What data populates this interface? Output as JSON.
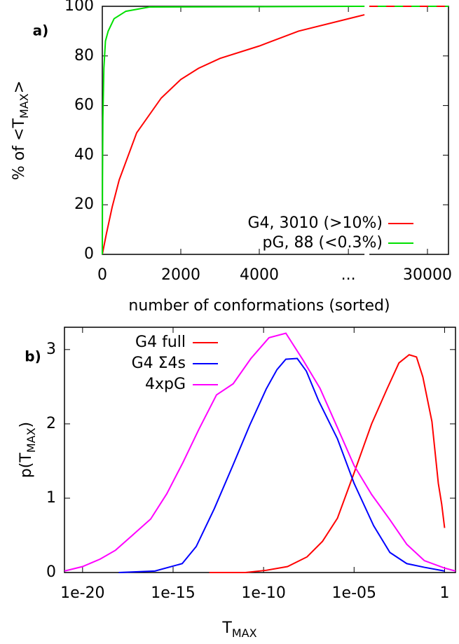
{
  "chart_data": [
    {
      "type": "line",
      "panel_label": "a)",
      "ylabel": [
        "% of <T",
        "MAX",
        ">"
      ],
      "xlabel": "number of conformations (sorted)",
      "xlim": [
        0,
        30536
      ],
      "x_break": [
        6680,
        28520
      ],
      "xticks": [
        0,
        2000,
        4000,
        {
          "value": 6270,
          "label": "..."
        },
        30000
      ],
      "ylim": [
        0,
        100
      ],
      "yticks": [
        0,
        20,
        40,
        60,
        80,
        100
      ],
      "legend": "bottom right",
      "series": [
        {
          "name": "G4, 3010 (>10%)",
          "color": "#ff0000",
          "x": [
            0,
            100,
            250,
            430,
            875,
            1500,
            2000,
            2450,
            3000,
            4000,
            5000,
            6680,
            null,
            28520,
            30536
          ],
          "values": [
            0,
            8,
            19,
            30,
            49,
            63,
            70.5,
            75,
            79,
            84,
            90,
            96.6,
            null,
            100,
            100
          ]
        },
        {
          "name": "pG, 88 (<0.3%)",
          "color": "#00e000",
          "x": [
            0,
            5,
            15,
            40,
            80,
            150,
            300,
            600,
            1200,
            6680,
            null,
            28520,
            30536
          ],
          "values": [
            0,
            30,
            55,
            75,
            86,
            90,
            95,
            98,
            99.7,
            100,
            null,
            100,
            100
          ]
        }
      ]
    },
    {
      "type": "line",
      "panel_label": "b)",
      "ylabel": [
        "p(T",
        "MAX",
        ")"
      ],
      "xlabel": [
        "T",
        "MAX"
      ],
      "xscale": "log",
      "xlim": [
        1e-21,
        4
      ],
      "xticks": [
        1e-20,
        1e-15,
        1e-10,
        {
          "value": 1e-05,
          "label": "1e-05"
        },
        1
      ],
      "ylim": [
        0,
        3.3
      ],
      "yticks": [
        0,
        1,
        2,
        3
      ],
      "legend": "top left",
      "series": [
        {
          "name": "G4 full",
          "color": "#ff0000",
          "x": [
            1e-13,
            1e-11,
            1.4e-10,
            2.1e-09,
            2.5e-08,
            1.8e-07,
            1.2e-06,
            1e-05,
            9.3e-05,
            0.00066,
            0.003,
            0.011,
            0.028,
            0.063,
            0.2,
            0.45,
            0.69,
            1
          ],
          "values": [
            0,
            0,
            0.03,
            0.08,
            0.21,
            0.42,
            0.73,
            1.34,
            2.0,
            2.47,
            2.82,
            2.93,
            2.9,
            2.63,
            2.03,
            1.2,
            0.92,
            0.6
          ]
        },
        {
          "name": "G4 Σ4s",
          "color": "#0000ff",
          "x": [
            1e-18,
            1e-16,
            3.2e-15,
            1.9e-14,
            1.9e-13,
            2e-12,
            1.7e-11,
            1.4e-10,
            5.5e-10,
            1.7e-09,
            7.2e-09,
            2.3e-08,
            1.1e-07,
            1.2e-06,
            1e-05,
            0.00012,
            0.00095,
            0.0081,
            0.076,
            1
          ],
          "values": [
            0,
            0.02,
            0.12,
            0.35,
            0.86,
            1.44,
            1.98,
            2.47,
            2.73,
            2.87,
            2.88,
            2.71,
            2.31,
            1.8,
            1.2,
            0.63,
            0.27,
            0.12,
            0.07,
            0.02
          ]
        },
        {
          "name": "4xpG",
          "color": "#ff00ff",
          "x": [
            1e-21,
            1e-20,
            9.3e-20,
            6.6e-19,
            5.6e-18,
            5.8e-17,
            4.5e-16,
            3.5e-15,
            2.7e-14,
            2.5e-13,
            2.1e-12,
            2e-11,
            2e-10,
            1.7e-09,
            1.5e-08,
            1.3e-07,
            1.2e-06,
            1e-05,
            9.3e-05,
            0.00095,
            0.0081,
            0.076,
            1,
            4
          ],
          "values": [
            0.02,
            0.08,
            0.18,
            0.3,
            0.5,
            0.72,
            1.06,
            1.48,
            1.93,
            2.39,
            2.54,
            2.88,
            3.16,
            3.22,
            2.86,
            2.48,
            1.95,
            1.44,
            1.05,
            0.71,
            0.38,
            0.16,
            0.06,
            0.02
          ]
        }
      ]
    }
  ]
}
